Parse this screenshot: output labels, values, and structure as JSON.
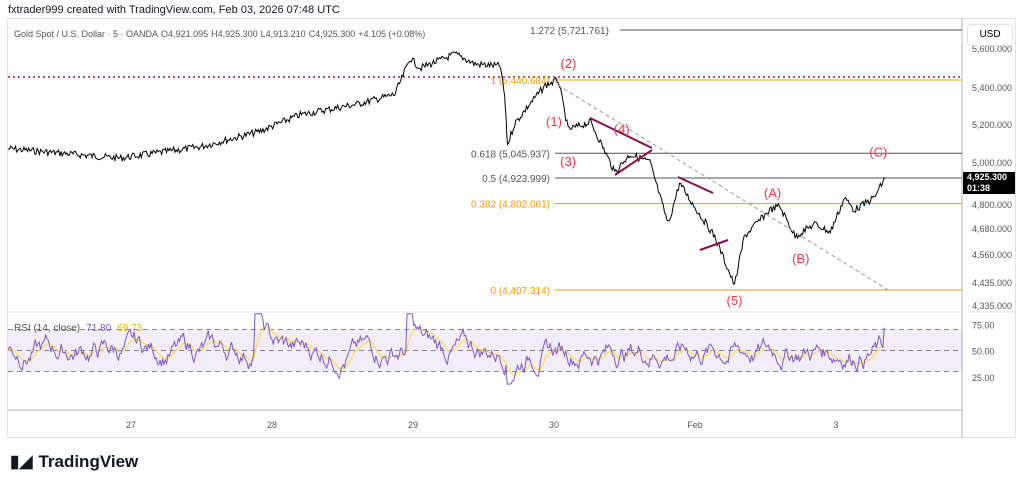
{
  "header": {
    "attribution": "fxtrader999 created with TradingView.com, Feb 03, 2026 07:48 UTC"
  },
  "legend": {
    "symbol": "Gold Spot / U.S. Dollar · 5 · OANDA",
    "open": "O4,921.095",
    "high": "H4,925.300",
    "low": "L4,913.210",
    "close": "C4,925.300",
    "change": "+4.105 (+0.08%)"
  },
  "price_axis": {
    "currency": "USD",
    "last_price": "4,925.300",
    "countdown": "01:38"
  },
  "rsi": {
    "label": "RSI (14, close)",
    "value": "71.80",
    "ma_value": "69.73",
    "ticks": [
      "75.00",
      "50.00",
      "25.00"
    ]
  },
  "colors": {
    "price": "#000000",
    "fib_orange": "#ff9800",
    "fib_gray": "#555555",
    "wave": "#f23645",
    "triangle": "#880e4f",
    "rsi": "#7e57c2",
    "rsi_ma": "#fdd835"
  },
  "chart_data": {
    "type": "line",
    "title": "Gold Spot / U.S. Dollar · 5 · OANDA",
    "x_ticks": [
      "27",
      "28",
      "29",
      "30",
      "Feb",
      "3"
    ],
    "y_ticks": [
      "5,600.000",
      "5,400.000",
      "5,200.000",
      "5,000.000",
      "4,800.000",
      "4,680.000",
      "4,560.000",
      "4,435.000",
      "4,335.000"
    ],
    "price_path": [
      [
        -0.87,
        5070
      ],
      [
        -0.08,
        5020
      ],
      [
        0.49,
        5080
      ],
      [
        0.91,
        5160
      ],
      [
        1.2,
        5250
      ],
      [
        1.62,
        5310
      ],
      [
        1.87,
        5360
      ],
      [
        1.98,
        5550
      ],
      [
        2.05,
        5500
      ],
      [
        2.3,
        5570
      ],
      [
        2.44,
        5520
      ],
      [
        2.62,
        5510
      ],
      [
        2.65,
        5350
      ],
      [
        2.67,
        5090
      ],
      [
        2.72,
        5200
      ],
      [
        2.83,
        5310
      ],
      [
        2.94,
        5410
      ],
      [
        3.03,
        5440
      ],
      [
        3.1,
        5170
      ],
      [
        3.26,
        5210
      ],
      [
        3.43,
        4950
      ],
      [
        3.54,
        5040
      ],
      [
        3.68,
        5000
      ],
      [
        3.81,
        4700
      ],
      [
        3.89,
        4900
      ],
      [
        4.04,
        4740
      ],
      [
        4.14,
        4640
      ],
      [
        4.28,
        4420
      ],
      [
        4.35,
        4640
      ],
      [
        4.53,
        4770
      ],
      [
        4.6,
        4790
      ],
      [
        4.71,
        4640
      ],
      [
        4.85,
        4700
      ],
      [
        4.96,
        4660
      ],
      [
        5.06,
        4830
      ],
      [
        5.13,
        4770
      ],
      [
        5.27,
        4830
      ],
      [
        5.35,
        4925
      ]
    ],
    "fib_levels": [
      {
        "label": "1.272 (5,721.761)",
        "price": 5721.761,
        "color": "gray"
      },
      {
        "label": "1 (5,440.684)",
        "price": 5440.684,
        "color": "orange"
      },
      {
        "label": "0.618 (5,045.937)",
        "price": 5045.937,
        "color": "gray"
      },
      {
        "label": "0.5 (4,923.999)",
        "price": 4923.999,
        "color": "gray"
      },
      {
        "label": "0.382 (4,802.061)",
        "price": 4802.061,
        "color": "orange"
      },
      {
        "label": "0 (4,407.314)",
        "price": 4407.314,
        "color": "orange"
      }
    ],
    "wave_labels": [
      {
        "text": "(1)",
        "i": 3.0,
        "price": 5190
      },
      {
        "text": "(2)",
        "i": 3.06,
        "price": 5480
      },
      {
        "text": "(3)",
        "i": 3.1,
        "price": 4990
      },
      {
        "text": "(4)",
        "i": 3.48,
        "price": 5150
      },
      {
        "text": "(5)",
        "i": 4.28,
        "price": 4300
      },
      {
        "text": "(A)",
        "i": 4.55,
        "price": 4830
      },
      {
        "text": "(B)",
        "i": 4.75,
        "price": 4520
      },
      {
        "text": "(C)",
        "i": 5.3,
        "price": 5030
      }
    ],
    "rsi_range": [
      0,
      100
    ],
    "rsi_bands": [
      30,
      50,
      70
    ]
  }
}
